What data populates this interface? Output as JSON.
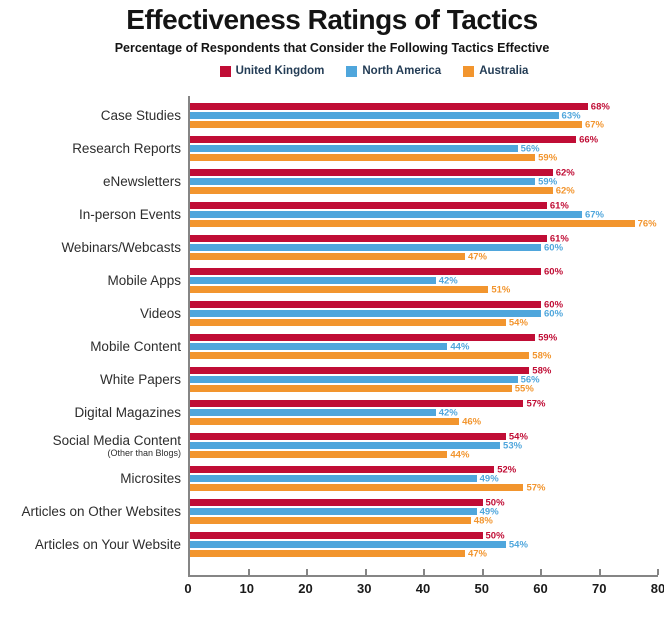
{
  "title": "Effectiveness Ratings of Tactics",
  "subtitle": "Percentage of Respondents that Consider the Following Tactics Effective",
  "chart_data": {
    "type": "bar",
    "orientation": "horizontal",
    "title": "Effectiveness Ratings of Tactics",
    "subtitle": "Percentage of Respondents that Consider the Following Tactics Effective",
    "legend_position": "top",
    "grid": false,
    "value_suffix": "%",
    "xlim": [
      0,
      80
    ],
    "xticks": [
      0,
      10,
      20,
      30,
      40,
      50,
      60,
      70,
      80
    ],
    "categories": [
      {
        "label": "Case Studies"
      },
      {
        "label": "Research Reports"
      },
      {
        "label": "eNewsletters"
      },
      {
        "label": "In-person Events"
      },
      {
        "label": "Webinars/Webcasts"
      },
      {
        "label": "Mobile Apps"
      },
      {
        "label": "Videos"
      },
      {
        "label": "Mobile Content"
      },
      {
        "label": "White Papers"
      },
      {
        "label": "Digital Magazines"
      },
      {
        "label": "Social Media Content",
        "sublabel": "(Other than Blogs)"
      },
      {
        "label": "Microsites"
      },
      {
        "label": "Articles on Other Websites"
      },
      {
        "label": "Articles on Your Website"
      }
    ],
    "series": [
      {
        "name": "United Kingdom",
        "key": "united-kingdom",
        "color": "#C00D35",
        "values": [
          68,
          66,
          62,
          61,
          61,
          60,
          60,
          59,
          58,
          57,
          54,
          52,
          50,
          50
        ]
      },
      {
        "name": "North America",
        "key": "north-america",
        "color": "#4FA6DC",
        "values": [
          63,
          56,
          59,
          67,
          60,
          42,
          60,
          44,
          56,
          42,
          53,
          49,
          49,
          54
        ]
      },
      {
        "name": "Australia",
        "key": "australia",
        "color": "#F2952E",
        "values": [
          67,
          59,
          62,
          76,
          47,
          51,
          54,
          58,
          55,
          46,
          44,
          57,
          48,
          47
        ]
      }
    ]
  },
  "style": {
    "axis_color": "#858585",
    "legend_text_color": "#233C55",
    "category_label_color": "#2d2d2d",
    "tick_label_color": "#1a1a1a"
  }
}
